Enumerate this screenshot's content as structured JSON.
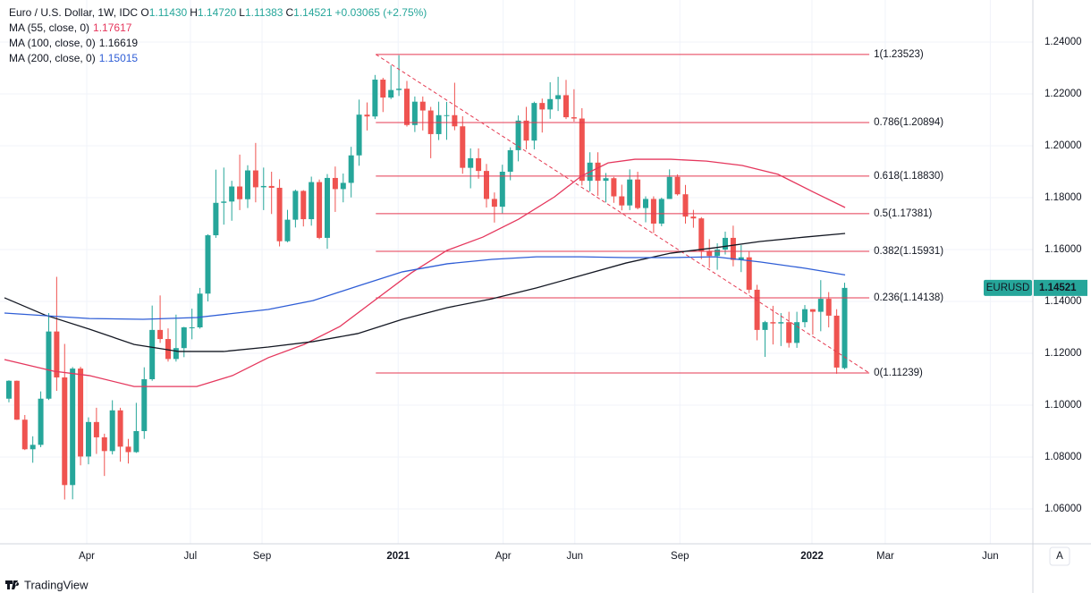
{
  "chart_data": {
    "type": "candlestick",
    "title": "Euro / U.S. Dollar, 1W, IDC",
    "ohlc_legend": [
      {
        "key": "O",
        "value": "1.11430"
      },
      {
        "key": "H",
        "value": "1.14720"
      },
      {
        "key": "L",
        "value": "1.11383"
      },
      {
        "key": "C",
        "value": "1.14521"
      },
      {
        "key": "",
        "value": "+0.03065 (+2.75%)"
      }
    ],
    "up_color": "#26a69a",
    "down_color": "#ef5350",
    "open": [
      1.1025,
      1.1094,
      1.0944,
      1.083,
      1.0847,
      1.1025,
      1.1284,
      1.1107,
      1.0692,
      1.1141,
      1.0802,
      1.0935,
      1.0876,
      1.0823,
      1.098,
      1.084,
      1.0819,
      1.09,
      1.11,
      1.129,
      1.1255,
      1.1178,
      1.122,
      1.13,
      1.13,
      1.143,
      1.1655,
      1.178,
      1.1785,
      1.1843,
      1.1794,
      1.1905,
      1.184,
      1.1845,
      1.1838,
      1.1632,
      1.1715,
      1.1826,
      1.1717,
      1.186,
      1.1645,
      1.1876,
      1.1833,
      1.1857,
      1.1963,
      1.212,
      1.2113,
      1.2255,
      1.2186,
      1.2215,
      1.222,
      1.208,
      1.217,
      1.2136,
      1.2045,
      1.2118,
      1.2118,
      1.2075,
      1.1915,
      1.1952,
      1.1903,
      1.1795,
      1.1765,
      1.19,
      1.1983,
      1.2097,
      1.202,
      1.2165,
      1.214,
      1.218,
      1.2195,
      1.211,
      1.2105,
      1.1865,
      1.1935,
      1.1865,
      1.1875,
      1.1805,
      1.177,
      1.187,
      1.176,
      1.1795,
      1.17,
      1.1795,
      1.188,
      1.1813,
      1.1727,
      1.172,
      1.1595,
      1.1575,
      1.16,
      1.1645,
      1.156,
      1.157,
      1.1445,
      1.129,
      1.132,
      1.1315,
      1.132,
      1.124,
      1.132,
      1.137,
      1.136,
      1.141,
      1.1345,
      1.1143
    ],
    "high": [
      1.1096,
      1.1095,
      1.0962,
      1.088,
      1.1053,
      1.1355,
      1.1495,
      1.1236,
      1.1147,
      1.1148,
      1.0953,
      1.099,
      1.089,
      1.1019,
      1.099,
      1.087,
      1.1009,
      1.1146,
      1.1384,
      1.1423,
      1.1296,
      1.1349,
      1.1302,
      1.1372,
      1.1452,
      1.1659,
      1.1908,
      1.1916,
      1.1865,
      1.1966,
      1.1925,
      1.2011,
      1.1916,
      1.19,
      1.1871,
      1.1753,
      1.1831,
      1.1829,
      1.1881,
      1.187,
      1.1891,
      1.192,
      1.1893,
      1.1996,
      1.2178,
      1.2167,
      1.2273,
      1.2262,
      1.231,
      1.2349,
      1.225,
      1.219,
      1.219,
      1.215,
      1.217,
      1.2169,
      1.2243,
      1.2114,
      1.199,
      1.199,
      1.193,
      1.182,
      1.1927,
      1.1994,
      1.2117,
      1.215,
      1.217,
      1.2182,
      1.2245,
      1.2266,
      1.2254,
      1.2218,
      1.2145,
      1.1975,
      1.1975,
      1.1895,
      1.188,
      1.185,
      1.1909,
      1.19,
      1.1805,
      1.1805,
      1.18,
      1.1909,
      1.189,
      1.1849,
      1.1753,
      1.1725,
      1.164,
      1.1624,
      1.1669,
      1.1692,
      1.1617,
      1.1592,
      1.1464,
      1.1325,
      1.1383,
      1.1355,
      1.136,
      1.136,
      1.1386,
      1.137,
      1.1482,
      1.1436,
      1.137,
      1.1472
    ],
    "low": [
      1.1011,
      1.0943,
      1.0827,
      1.0778,
      1.0838,
      1.102,
      1.1055,
      1.0636,
      1.0637,
      1.0768,
      1.0772,
      1.0812,
      1.0727,
      1.081,
      1.0782,
      1.0775,
      1.0816,
      1.087,
      1.1094,
      1.124,
      1.1168,
      1.1168,
      1.1185,
      1.1254,
      1.1295,
      1.14,
      1.1645,
      1.1696,
      1.1711,
      1.1752,
      1.176,
      1.1782,
      1.1752,
      1.1737,
      1.1612,
      1.1628,
      1.1685,
      1.1689,
      1.1692,
      1.164,
      1.1603,
      1.1745,
      1.1782,
      1.1801,
      1.1923,
      1.2059,
      1.2103,
      1.213,
      1.218,
      1.2192,
      1.2074,
      1.2053,
      1.2059,
      1.1952,
      1.2022,
      1.2023,
      1.206,
      1.1892,
      1.1836,
      1.1873,
      1.1762,
      1.1704,
      1.174,
      1.1867,
      1.194,
      1.1986,
      1.1986,
      1.2051,
      1.2104,
      1.2134,
      1.2103,
      1.2093,
      1.1847,
      1.1824,
      1.1807,
      1.1782,
      1.178,
      1.1751,
      1.1752,
      1.1755,
      1.1705,
      1.1664,
      1.169,
      1.1795,
      1.1808,
      1.17,
      1.1684,
      1.1563,
      1.1529,
      1.1522,
      1.1581,
      1.1535,
      1.1513,
      1.1432,
      1.125,
      1.1186,
      1.1234,
      1.1228,
      1.1222,
      1.1221,
      1.13,
      1.1272,
      1.1285,
      1.13,
      1.1121,
      1.11383
    ],
    "close": [
      1.1094,
      1.0944,
      1.083,
      1.0847,
      1.1025,
      1.1284,
      1.1107,
      1.0692,
      1.1141,
      1.0802,
      1.0935,
      1.0876,
      1.0823,
      1.098,
      1.084,
      1.0819,
      1.09,
      1.11,
      1.129,
      1.1255,
      1.1178,
      1.122,
      1.13,
      1.13,
      1.143,
      1.1655,
      1.178,
      1.1785,
      1.1843,
      1.1794,
      1.1905,
      1.184,
      1.1845,
      1.1838,
      1.1632,
      1.1715,
      1.1826,
      1.1717,
      1.186,
      1.1645,
      1.1876,
      1.1833,
      1.1857,
      1.1963,
      1.212,
      1.2113,
      1.2255,
      1.2186,
      1.2215,
      1.222,
      1.208,
      1.217,
      1.2136,
      1.2045,
      1.2118,
      1.2118,
      1.2075,
      1.1915,
      1.1952,
      1.1903,
      1.1795,
      1.1765,
      1.19,
      1.1983,
      1.2097,
      1.202,
      1.2165,
      1.214,
      1.218,
      1.2195,
      1.211,
      1.2105,
      1.1865,
      1.1935,
      1.1865,
      1.1875,
      1.1805,
      1.177,
      1.187,
      1.176,
      1.1795,
      1.17,
      1.1795,
      1.188,
      1.1813,
      1.1727,
      1.172,
      1.1595,
      1.1575,
      1.16,
      1.1645,
      1.156,
      1.157,
      1.1445,
      1.129,
      1.132,
      1.1315,
      1.132,
      1.124,
      1.132,
      1.137,
      1.136,
      1.141,
      1.1345,
      1.1145,
      1.14521
    ],
    "series": [
      {
        "name": "MA (55, close, 0)",
        "last_value": 1.17617,
        "color": "#e5375d",
        "x": [
          -0.56,
          5.62,
          10.11,
          15.73,
          23.6,
          28.09,
          32.58,
          37.08,
          41.57,
          46.07,
          50.56,
          55.06,
          59.55,
          64.04,
          68.54,
          71.91,
          75.28,
          78.65,
          83.15,
          87.64,
          92.13,
          96.63,
          101.12,
          105.06
        ],
        "values": [
          1.1176,
          1.1131,
          1.1114,
          1.1072,
          1.1072,
          1.1114,
          1.1183,
          1.1234,
          1.1303,
          1.1407,
          1.151,
          1.1597,
          1.1648,
          1.1717,
          1.1803,
          1.1883,
          1.1934,
          1.1948,
          1.1948,
          1.1941,
          1.1924,
          1.189,
          1.1821,
          1.1762
        ]
      },
      {
        "name": "MA (100, close, 0)",
        "last_value": 1.16619,
        "color": "#131722",
        "x": [
          -0.56,
          4.49,
          10.11,
          15.73,
          21.35,
          26.97,
          32.58,
          38.2,
          43.82,
          49.44,
          55.06,
          60.67,
          66.29,
          71.91,
          77.53,
          83.15,
          88.76,
          94.38,
          100,
          105.06
        ],
        "values": [
          1.1414,
          1.1348,
          1.1293,
          1.1234,
          1.1207,
          1.1207,
          1.1224,
          1.1245,
          1.1276,
          1.1331,
          1.1376,
          1.141,
          1.1452,
          1.15,
          1.1548,
          1.1586,
          1.1607,
          1.1631,
          1.1648,
          1.1662
        ]
      },
      {
        "name": "MA (200, close, 0)",
        "last_value": 1.15015,
        "color": "#2f5ed6",
        "x": [
          -0.56,
          10.11,
          16.85,
          23.6,
          32.58,
          38.2,
          43.82,
          49.44,
          55.06,
          60.67,
          66.29,
          71.91,
          77.53,
          83.15,
          88.76,
          94.38,
          100,
          105.06
        ],
        "values": [
          1.1355,
          1.1334,
          1.1331,
          1.1338,
          1.1369,
          1.1403,
          1.1459,
          1.1514,
          1.1545,
          1.1562,
          1.1572,
          1.1572,
          1.1569,
          1.1569,
          1.1572,
          1.1552,
          1.1528,
          1.1502
        ]
      }
    ],
    "fib_color": "#e53950",
    "fib_x": [
      46.1,
      108.1
    ],
    "fib_levels": [
      {
        "value": 1.23523,
        "label": "1(1.23523)"
      },
      {
        "value": 1.20894,
        "label": "0.786(1.20894)"
      },
      {
        "value": 1.1883,
        "label": "0.618(1.18830)"
      },
      {
        "value": 1.17381,
        "label": "0.5(1.17381)"
      },
      {
        "value": 1.15931,
        "label": "0.382(1.15931)"
      },
      {
        "value": 1.14138,
        "label": "0.236(1.14138)"
      },
      {
        "value": 1.11239,
        "label": "0(1.11239)"
      }
    ],
    "trendline": {
      "x": [
        46.1,
        108.1
      ],
      "values": [
        1.23523,
        1.11239
      ]
    },
    "price_label": {
      "name": "EURUSD",
      "value": 1.14521,
      "label": "1.14521",
      "color": "#26a69a"
    },
    "xlim": [
      -1.12,
      128.65
    ],
    "xticks": [
      {
        "value": 9.78,
        "label": "Apr"
      },
      {
        "value": 22.8,
        "label": "Jul"
      },
      {
        "value": 31.8,
        "label": "Sep"
      },
      {
        "value": 48.9,
        "label": "2021"
      },
      {
        "value": 62.1,
        "label": "Apr"
      },
      {
        "value": 71.1,
        "label": "Jun"
      },
      {
        "value": 84.3,
        "label": "Sep"
      },
      {
        "value": 100.9,
        "label": "2022"
      },
      {
        "value": 110.1,
        "label": "Mar"
      },
      {
        "value": 123.3,
        "label": "Jun"
      }
    ],
    "ylim": [
      1.04655,
      1.2562
    ],
    "yticks": [
      {
        "value": 1.06,
        "label": "1.06000"
      },
      {
        "value": 1.08,
        "label": "1.08000"
      },
      {
        "value": 1.1,
        "label": "1.10000"
      },
      {
        "value": 1.12,
        "label": "1.12000"
      },
      {
        "value": 1.14,
        "label": "1.14000"
      },
      {
        "value": 1.16,
        "label": "1.16000"
      },
      {
        "value": 1.18,
        "label": "1.18000"
      },
      {
        "value": 1.2,
        "label": "1.20000"
      },
      {
        "value": 1.22,
        "label": "1.22000"
      },
      {
        "value": 1.24,
        "label": "1.24000"
      }
    ],
    "grid": true,
    "scale_button": "A",
    "brand": "TradingView"
  }
}
